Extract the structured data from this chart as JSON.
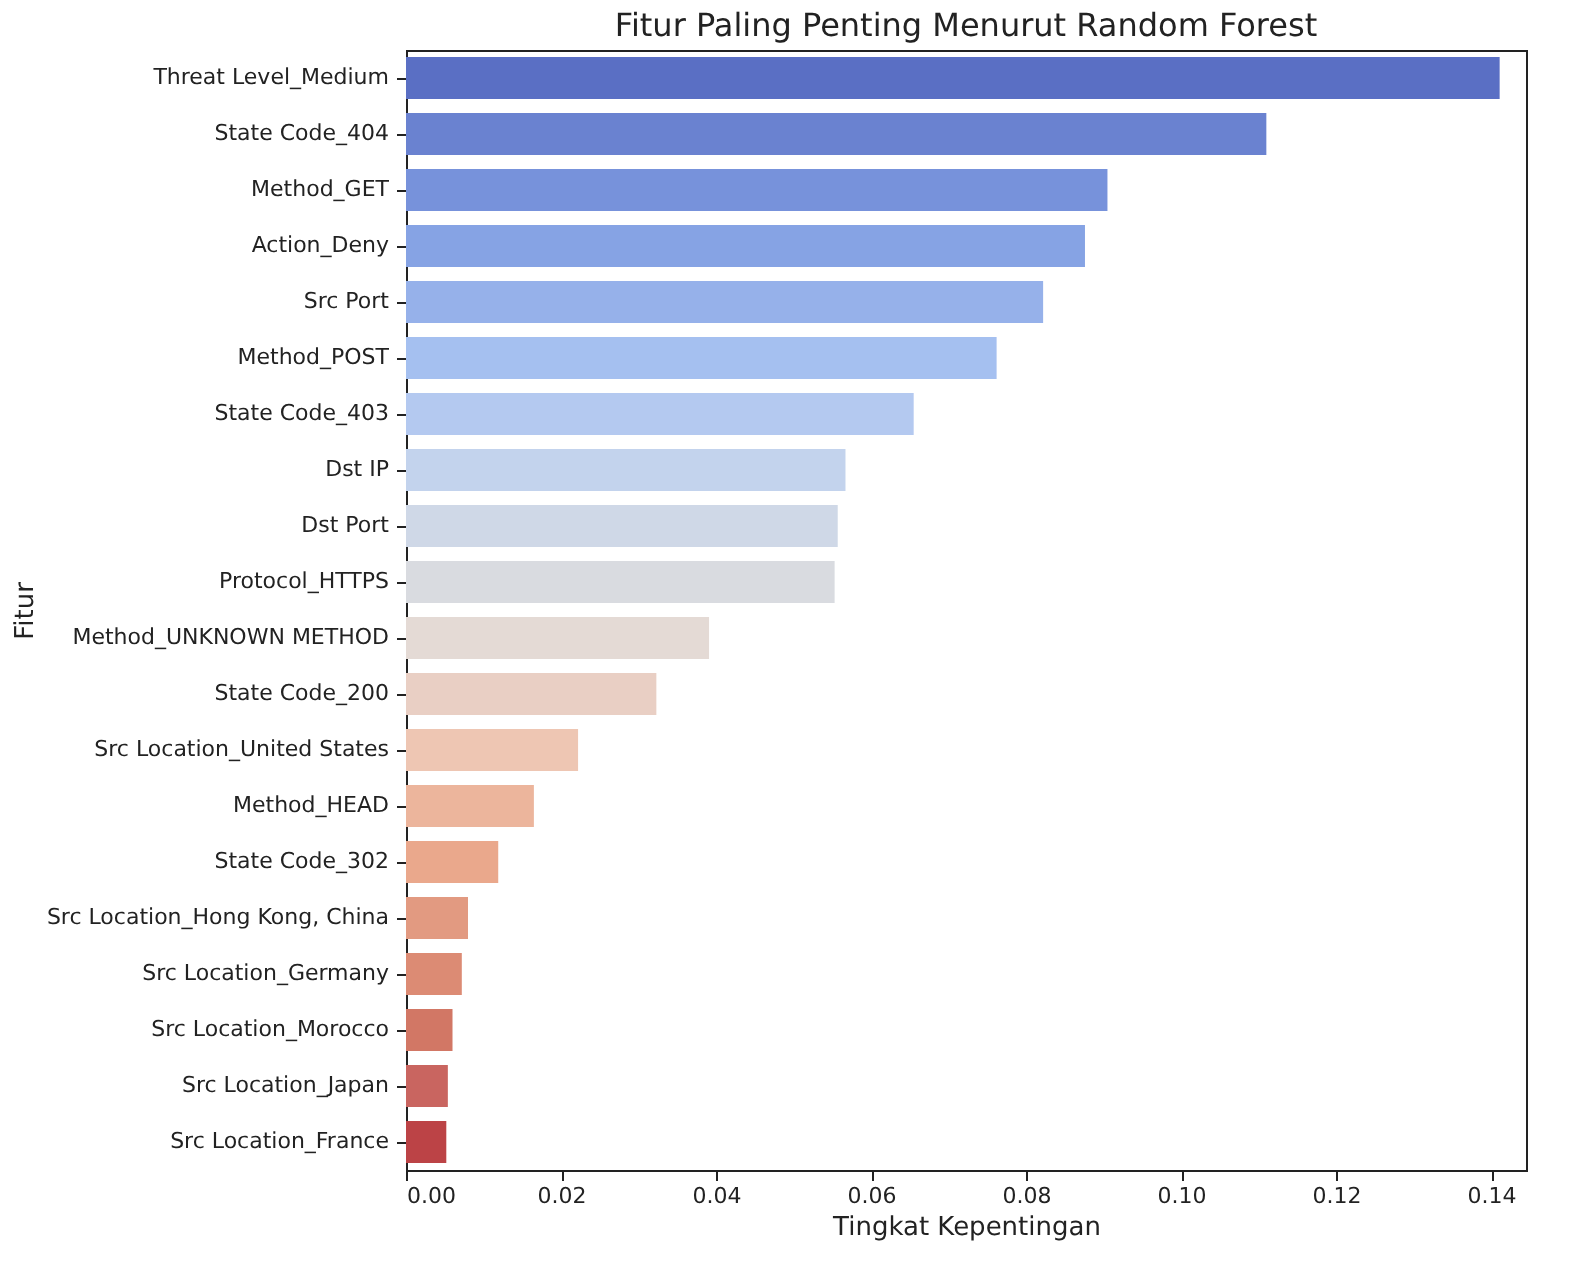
{
  "chart_data": {
    "type": "bar",
    "orientation": "horizontal",
    "title": "Fitur Paling Penting Menurut Random Forest",
    "xlabel": "Tingkat Kepentingan",
    "ylabel": "Fitur",
    "categories": [
      "Threat Level_Medium",
      "State Code_404",
      "Method_GET",
      "Action_Deny",
      "Src Port",
      "Method_POST",
      "State Code_403",
      "Dst IP",
      "Dst Port",
      "Protocol_HTTPS",
      "Method_UNKNOWN METHOD",
      "State Code_200",
      "Src Location_United States",
      "Method_HEAD",
      "State Code_302",
      "Src Location_Hong Kong, China",
      "Src Location_Germany",
      "Src Location_Morocco",
      "Src Location_Japan",
      "Src Location_France"
    ],
    "values": [
      0.1411,
      0.111,
      0.0905,
      0.0876,
      0.0822,
      0.0762,
      0.0655,
      0.0567,
      0.0557,
      0.0553,
      0.0391,
      0.0323,
      0.0222,
      0.0165,
      0.0119,
      0.008,
      0.0072,
      0.006,
      0.0054,
      0.0052
    ],
    "colors": [
      "#5a6fc4",
      "#6a82d0",
      "#7792db",
      "#86a3e4",
      "#96b1ea",
      "#a5c0f0",
      "#b4c9f0",
      "#c3d3ed",
      "#cfd8e7",
      "#d9dbe0",
      "#e4dad5",
      "#e9cfc4",
      "#eec6b3",
      "#ecb59c",
      "#eaa88c",
      "#e29a81",
      "#dc8b74",
      "#d27765",
      "#c96560",
      "#bc4346"
    ],
    "xlim": [
      0,
      0.1445
    ],
    "xticks": [
      {
        "value": 0,
        "label": "0.00"
      },
      0.02,
      0.04,
      0.06,
      0.08,
      {
        "value": 0.1,
        "label": "0.10"
      },
      0.12,
      0.14
    ],
    "grid": false
  }
}
